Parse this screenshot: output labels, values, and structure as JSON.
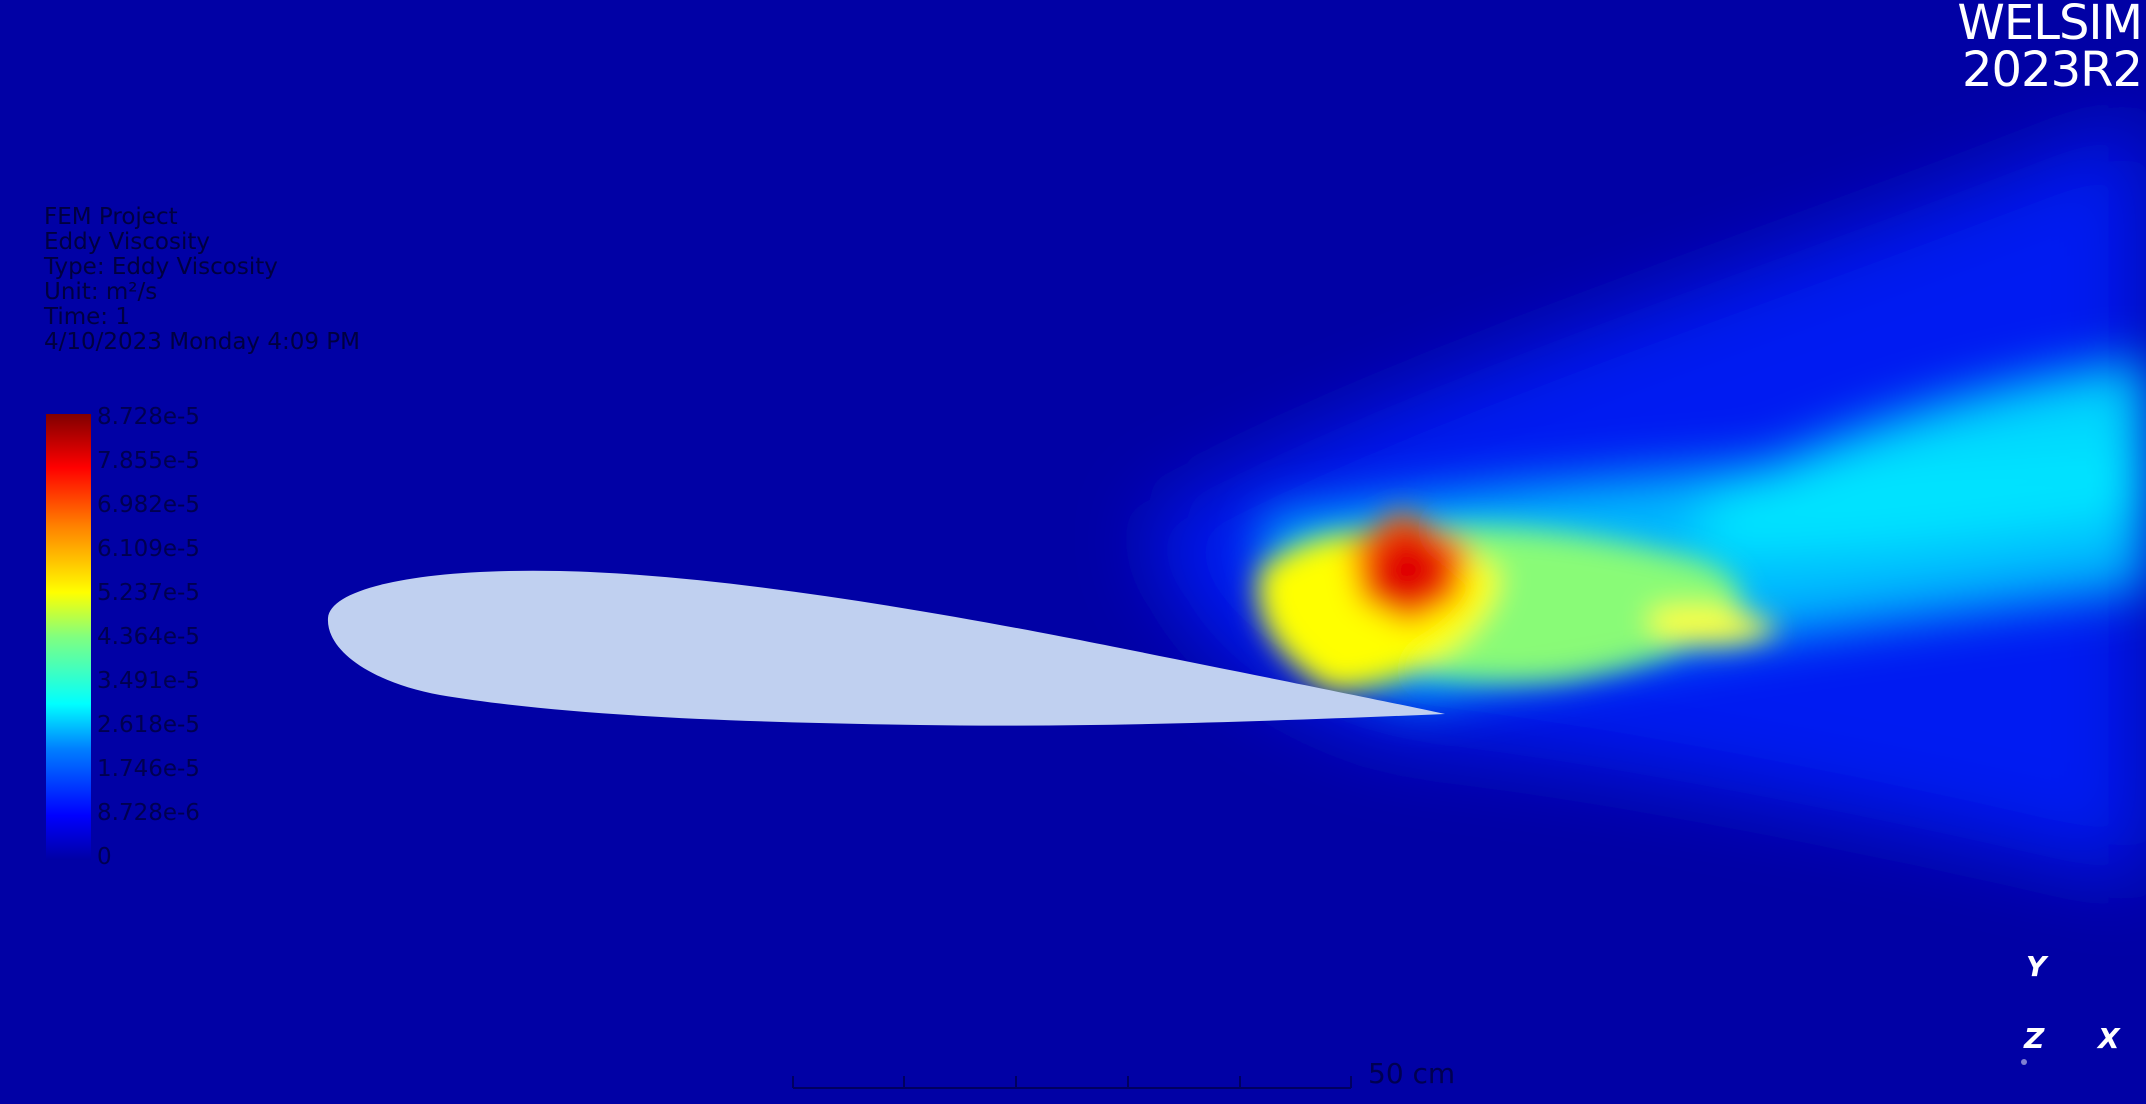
{
  "brand": {
    "line1": "WELSIM",
    "line2": "2023R2"
  },
  "info": {
    "project": "FEM Project",
    "result_name": "Eddy Viscosity",
    "type": "Type: Eddy Viscosity",
    "unit": "Unit: m²/s",
    "time": "Time: 1",
    "timestamp": "4/10/2023 Monday 4:09 PM"
  },
  "legend": {
    "labels": [
      "8.728e-5",
      "7.855e-5",
      "6.982e-5",
      "6.109e-5",
      "5.237e-5",
      "4.364e-5",
      "3.491e-5",
      "2.618e-5",
      "1.746e-5",
      "8.728e-6",
      "0"
    ]
  },
  "scale": {
    "label": "50 cm"
  },
  "triad": {
    "y": "Y",
    "z": "Z",
    "x": "X"
  },
  "colors": {
    "background": "#0101a5",
    "airfoil": "#c0d0f0",
    "text": "#ffffff"
  }
}
